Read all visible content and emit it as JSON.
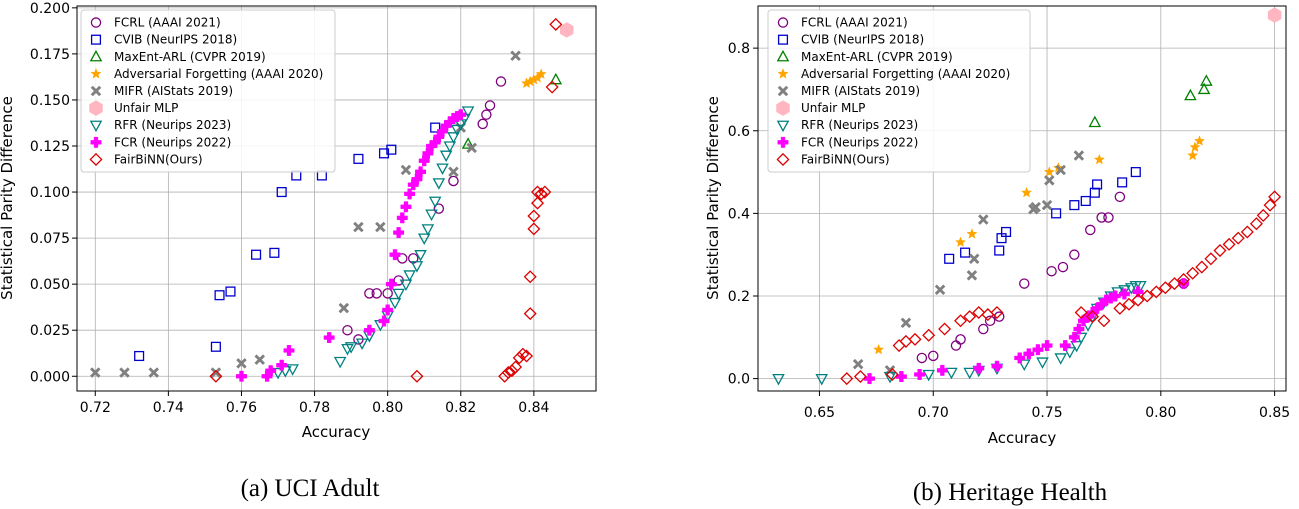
{
  "chart_data": [
    {
      "type": "scatter",
      "caption": "(a) UCI Adult",
      "xlabel": "Accuracy",
      "ylabel": "Statistical Parity Difference",
      "xlim": [
        0.715,
        0.857
      ],
      "ylim": [
        -0.008,
        0.201
      ],
      "xticks": [
        0.72,
        0.74,
        0.76,
        0.78,
        0.8,
        0.82,
        0.84
      ],
      "xtick_labels": [
        "0.72",
        "0.74",
        "0.76",
        "0.78",
        "0.80",
        "0.82",
        "0.84"
      ],
      "yticks": [
        0.0,
        0.025,
        0.05,
        0.075,
        0.1,
        0.125,
        0.15,
        0.175,
        0.2
      ],
      "ytick_labels": [
        "0.000",
        "0.025",
        "0.050",
        "0.075",
        "0.100",
        "0.125",
        "0.150",
        "0.175",
        "0.200"
      ],
      "legend_position": "top-left",
      "series": [
        {
          "name": "FCRL (AAAI 2021)",
          "marker": "circle",
          "color": "#800080",
          "x": [
            0.789,
            0.792,
            0.795,
            0.797,
            0.8,
            0.803,
            0.804,
            0.807,
            0.814,
            0.818,
            0.826,
            0.827,
            0.828,
            0.831
          ],
          "y": [
            0.025,
            0.02,
            0.045,
            0.045,
            0.045,
            0.052,
            0.064,
            0.064,
            0.091,
            0.106,
            0.137,
            0.142,
            0.147,
            0.16
          ]
        },
        {
          "name": "CVIB (NeurIPS 2018)",
          "marker": "square",
          "color": "#0000cd",
          "x": [
            0.732,
            0.753,
            0.754,
            0.757,
            0.764,
            0.769,
            0.771,
            0.775,
            0.782,
            0.792,
            0.799,
            0.801,
            0.813
          ],
          "y": [
            0.011,
            0.016,
            0.044,
            0.046,
            0.066,
            0.067,
            0.1,
            0.109,
            0.109,
            0.118,
            0.121,
            0.123,
            0.135
          ]
        },
        {
          "name": "MaxEnt-ARL (CVPR 2019)",
          "marker": "triangle-up",
          "color": "#008000",
          "x": [
            0.822,
            0.846
          ],
          "y": [
            0.126,
            0.161
          ]
        },
        {
          "name": "Adversarial Forgetting (AAAI 2020)",
          "marker": "star",
          "color": "#ffa500",
          "x": [
            0.838,
            0.839,
            0.84,
            0.841,
            0.842
          ],
          "y": [
            0.159,
            0.16,
            0.161,
            0.162,
            0.164
          ]
        },
        {
          "name": "MIFR (AIStats 2019)",
          "marker": "x-filled",
          "color": "#808080",
          "x": [
            0.72,
            0.728,
            0.736,
            0.753,
            0.76,
            0.765,
            0.788,
            0.792,
            0.798,
            0.805,
            0.818,
            0.82,
            0.823,
            0.835
          ],
          "y": [
            0.002,
            0.002,
            0.002,
            0.002,
            0.007,
            0.009,
            0.037,
            0.081,
            0.081,
            0.112,
            0.111,
            0.135,
            0.124,
            0.174
          ]
        },
        {
          "name": "Unfair MLP",
          "marker": "hexagon",
          "color": "#ffb6c1",
          "x": [
            0.849
          ],
          "y": [
            0.188
          ]
        },
        {
          "name": "RFR (Neurips 2023)",
          "marker": "triangle-down",
          "color": "#008080",
          "x": [
            0.77,
            0.772,
            0.774,
            0.787,
            0.789,
            0.79,
            0.793,
            0.795,
            0.798,
            0.8,
            0.802,
            0.803,
            0.805,
            0.806,
            0.808,
            0.809,
            0.81,
            0.811,
            0.812,
            0.813,
            0.814,
            0.815,
            0.816,
            0.817,
            0.818,
            0.819,
            0.82,
            0.821,
            0.822
          ],
          "y": [
            0.002,
            0.003,
            0.004,
            0.008,
            0.015,
            0.016,
            0.018,
            0.022,
            0.028,
            0.033,
            0.04,
            0.045,
            0.05,
            0.055,
            0.06,
            0.066,
            0.075,
            0.08,
            0.088,
            0.095,
            0.105,
            0.113,
            0.12,
            0.125,
            0.13,
            0.134,
            0.137,
            0.14,
            0.144
          ]
        },
        {
          "name": "FCR (Neurips 2022)",
          "marker": "plus",
          "color": "#ff00ff",
          "x": [
            0.76,
            0.767,
            0.768,
            0.771,
            0.773,
            0.784,
            0.795,
            0.799,
            0.8,
            0.801,
            0.802,
            0.803,
            0.804,
            0.805,
            0.806,
            0.807,
            0.808,
            0.809,
            0.81,
            0.811,
            0.812,
            0.813,
            0.814,
            0.815,
            0.816,
            0.817,
            0.818,
            0.819,
            0.82
          ],
          "y": [
            0.0,
            0.0,
            0.003,
            0.006,
            0.014,
            0.021,
            0.025,
            0.03,
            0.036,
            0.05,
            0.066,
            0.078,
            0.086,
            0.092,
            0.099,
            0.104,
            0.107,
            0.111,
            0.117,
            0.121,
            0.125,
            0.127,
            0.13,
            0.133,
            0.136,
            0.138,
            0.14,
            0.141,
            0.142
          ]
        },
        {
          "name": "FairBiNN(Ours)",
          "marker": "diamond",
          "color": "#dd0000",
          "x": [
            0.753,
            0.808,
            0.832,
            0.833,
            0.834,
            0.835,
            0.836,
            0.837,
            0.838,
            0.839,
            0.839,
            0.84,
            0.84,
            0.841,
            0.841,
            0.842,
            0.843,
            0.845,
            0.846
          ],
          "y": [
            0.0,
            0.0,
            0.0,
            0.002,
            0.003,
            0.005,
            0.01,
            0.012,
            0.011,
            0.034,
            0.054,
            0.08,
            0.087,
            0.094,
            0.1,
            0.099,
            0.1,
            0.157,
            0.191
          ]
        }
      ]
    },
    {
      "type": "scatter",
      "caption": "(b) Heritage Health",
      "xlabel": "Accuracy",
      "ylabel": "Statistical Parity Difference",
      "xlim": [
        0.623,
        0.855
      ],
      "ylim": [
        -0.03,
        0.902
      ],
      "xticks": [
        0.65,
        0.7,
        0.75,
        0.8,
        0.85
      ],
      "xtick_labels": [
        "0.65",
        "0.70",
        "0.75",
        "0.80",
        "0.85"
      ],
      "yticks": [
        0.0,
        0.2,
        0.4,
        0.6,
        0.8
      ],
      "ytick_labels": [
        "0.0",
        "0.2",
        "0.4",
        "0.6",
        "0.8"
      ],
      "legend_position": "top-left",
      "series": [
        {
          "name": "FCRL (AAAI 2021)",
          "marker": "circle",
          "color": "#800080",
          "x": [
            0.695,
            0.7,
            0.71,
            0.712,
            0.722,
            0.725,
            0.729,
            0.74,
            0.752,
            0.757,
            0.762,
            0.769,
            0.774,
            0.777,
            0.782,
            0.81
          ],
          "y": [
            0.05,
            0.055,
            0.08,
            0.095,
            0.12,
            0.14,
            0.15,
            0.23,
            0.26,
            0.27,
            0.3,
            0.36,
            0.39,
            0.39,
            0.44,
            0.23
          ]
        },
        {
          "name": "CVIB (NeurIPS 2018)",
          "marker": "square",
          "color": "#0000cd",
          "x": [
            0.707,
            0.714,
            0.729,
            0.73,
            0.732,
            0.754,
            0.762,
            0.767,
            0.771,
            0.772,
            0.783,
            0.789
          ],
          "y": [
            0.29,
            0.305,
            0.31,
            0.34,
            0.355,
            0.4,
            0.42,
            0.43,
            0.45,
            0.47,
            0.475,
            0.5
          ]
        },
        {
          "name": "MaxEnt-ARL (CVPR 2019)",
          "marker": "triangle-up",
          "color": "#008000",
          "x": [
            0.771,
            0.813,
            0.819,
            0.82
          ],
          "y": [
            0.62,
            0.685,
            0.7,
            0.72
          ]
        },
        {
          "name": "Adversarial Forgetting (AAAI 2020)",
          "marker": "star",
          "color": "#ffa500",
          "x": [
            0.676,
            0.712,
            0.717,
            0.741,
            0.751,
            0.755,
            0.773,
            0.814,
            0.815,
            0.817
          ],
          "y": [
            0.07,
            0.33,
            0.35,
            0.45,
            0.5,
            0.51,
            0.53,
            0.54,
            0.56,
            0.575
          ]
        },
        {
          "name": "MIFR (AIStats 2019)",
          "marker": "x-filled",
          "color": "#808080",
          "x": [
            0.667,
            0.681,
            0.688,
            0.703,
            0.717,
            0.718,
            0.722,
            0.744,
            0.745,
            0.75,
            0.751,
            0.756,
            0.764
          ],
          "y": [
            0.035,
            0.02,
            0.135,
            0.215,
            0.25,
            0.29,
            0.385,
            0.41,
            0.415,
            0.42,
            0.48,
            0.505,
            0.54
          ]
        },
        {
          "name": "Unfair MLP",
          "marker": "hexagon",
          "color": "#ffb6c1",
          "x": [
            0.85
          ],
          "y": [
            0.88
          ]
        },
        {
          "name": "RFR (Neurips 2023)",
          "marker": "triangle-down",
          "color": "#008080",
          "x": [
            0.632,
            0.651,
            0.681,
            0.698,
            0.708,
            0.716,
            0.72,
            0.728,
            0.74,
            0.748,
            0.756,
            0.76,
            0.763,
            0.765,
            0.768,
            0.77,
            0.772,
            0.775,
            0.778,
            0.781,
            0.784,
            0.787,
            0.789,
            0.791
          ],
          "y": [
            0.0,
            0.0,
            0.005,
            0.01,
            0.015,
            0.015,
            0.02,
            0.025,
            0.035,
            0.04,
            0.05,
            0.065,
            0.08,
            0.1,
            0.13,
            0.15,
            0.17,
            0.185,
            0.2,
            0.21,
            0.215,
            0.22,
            0.225,
            0.225
          ]
        },
        {
          "name": "FCR (Neurips 2022)",
          "marker": "plus",
          "color": "#ff00ff",
          "x": [
            0.672,
            0.686,
            0.694,
            0.704,
            0.72,
            0.728,
            0.738,
            0.742,
            0.746,
            0.75,
            0.758,
            0.762,
            0.764,
            0.766,
            0.768,
            0.77,
            0.772,
            0.774,
            0.776,
            0.778,
            0.78,
            0.784,
            0.79,
            0.81
          ],
          "y": [
            0.0,
            0.005,
            0.01,
            0.02,
            0.025,
            0.03,
            0.05,
            0.06,
            0.07,
            0.08,
            0.08,
            0.1,
            0.12,
            0.14,
            0.15,
            0.16,
            0.17,
            0.18,
            0.19,
            0.195,
            0.2,
            0.205,
            0.21,
            0.23
          ]
        },
        {
          "name": "FairBiNN(Ours)",
          "marker": "diamond",
          "color": "#dd0000",
          "x": [
            0.662,
            0.668,
            0.682,
            0.685,
            0.688,
            0.692,
            0.698,
            0.705,
            0.712,
            0.716,
            0.72,
            0.724,
            0.728,
            0.765,
            0.77,
            0.775,
            0.782,
            0.786,
            0.79,
            0.794,
            0.798,
            0.802,
            0.806,
            0.81,
            0.814,
            0.818,
            0.822,
            0.826,
            0.83,
            0.834,
            0.838,
            0.842,
            0.845,
            0.848,
            0.85
          ],
          "y": [
            0.0,
            0.005,
            0.01,
            0.08,
            0.09,
            0.095,
            0.105,
            0.12,
            0.14,
            0.15,
            0.16,
            0.155,
            0.16,
            0.16,
            0.15,
            0.14,
            0.17,
            0.18,
            0.19,
            0.2,
            0.21,
            0.22,
            0.23,
            0.24,
            0.255,
            0.27,
            0.29,
            0.31,
            0.325,
            0.34,
            0.355,
            0.375,
            0.395,
            0.42,
            0.44
          ]
        }
      ]
    }
  ]
}
